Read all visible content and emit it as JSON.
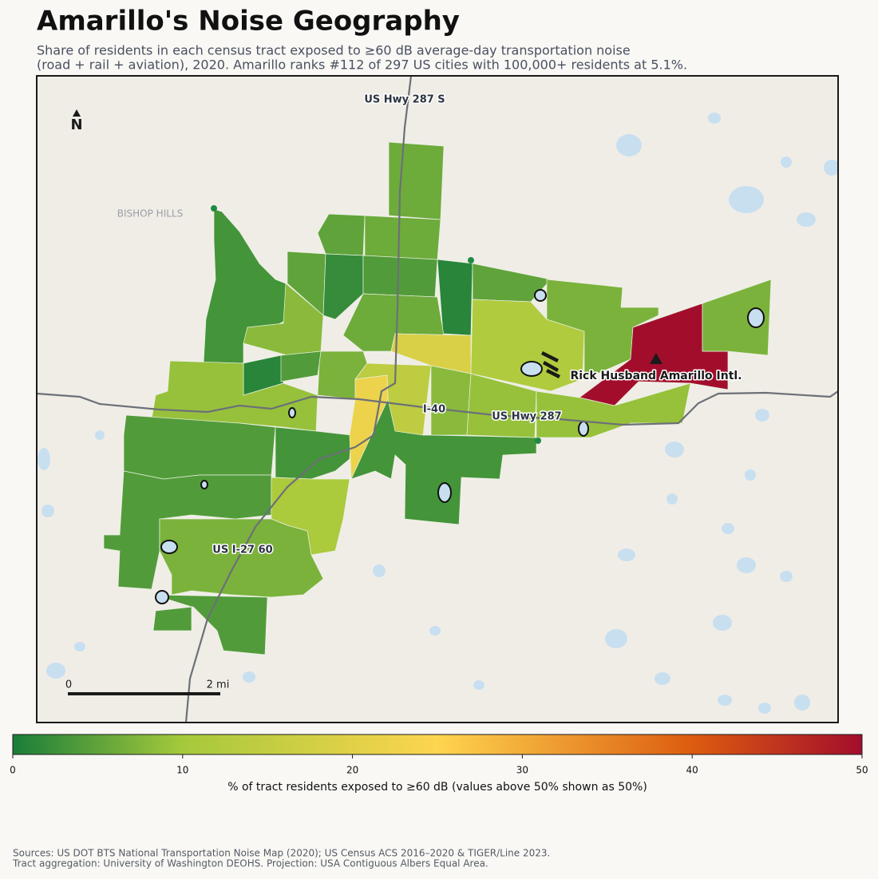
{
  "header": {
    "title": "Amarillo's Noise Geography",
    "subtitle": [
      "Share of residents in each census tract exposed to ≥60 dB average-day transportation noise",
      "(road + rail + aviation), 2020. Amarillo ranks #112 of 297 US cities with 100,000+ residents at 5.1%."
    ]
  },
  "map": {
    "labels": {
      "hwy287s": "US Hwy 287 S",
      "bishop": "BISHOP HILLS",
      "airport": "Rick Husband Amarillo Intl.",
      "i40": "I-40",
      "hwy287": "US Hwy 287",
      "i27": "US I-27 60"
    },
    "north": "N",
    "scale": [
      "0",
      "2 mi"
    ]
  },
  "tracts": {
    "values": [
      3,
      6,
      5,
      6,
      5,
      2,
      4,
      1,
      5,
      6,
      8,
      12,
      7,
      50,
      7,
      19,
      7,
      1,
      4,
      3,
      14,
      8,
      9,
      9,
      9,
      4,
      3,
      4,
      11,
      7,
      4,
      22
    ]
  },
  "colorbar": {
    "range": [
      0,
      50
    ],
    "ticks": [
      0,
      10,
      20,
      30,
      40,
      50
    ],
    "label": "% of tract residents exposed to ≥60 dB (values above 50% shown as 50%)",
    "colorscale": [
      {
        "value": 0,
        "color": "#1a7d3a"
      },
      {
        "value": 10,
        "color": "#a5c93b"
      },
      {
        "value": 25,
        "color": "#fed54f"
      },
      {
        "value": 40,
        "color": "#dc5c10"
      },
      {
        "value": 50,
        "color": "#a30d2c"
      }
    ]
  },
  "sources": [
    "Sources: US DOT BTS National Transportation Noise Map (2020); US Census ACS 2016–2020 & TIGER/Line 2023.",
    "Tract aggregation: University of Washington DEOHS. Projection: USA Contiguous Albers Equal Area."
  ]
}
